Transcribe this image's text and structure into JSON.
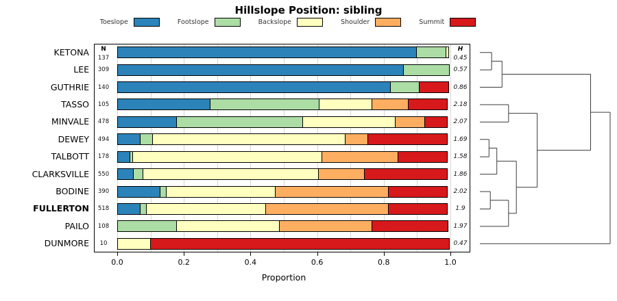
{
  "chart_data": {
    "type": "bar",
    "stacked": true,
    "orientation": "horizontal",
    "title": "Hillslope Position: sibling",
    "xlabel": "Proportion",
    "n_label": "N",
    "h_label": "H",
    "xlim": [
      0,
      1
    ],
    "x_ticks": [
      "0.0",
      "0.2",
      "0.4",
      "0.6",
      "0.8",
      "1.0"
    ],
    "grid_step": 0.1,
    "legend_position": "top",
    "legend": [
      {
        "label": "Toeslope",
        "color": "#2B83BA"
      },
      {
        "label": "Footslope",
        "color": "#ABDDA4"
      },
      {
        "label": "Backslope",
        "color": "#FFFFBF"
      },
      {
        "label": "Shoulder",
        "color": "#FDAE61"
      },
      {
        "label": "Summit",
        "color": "#D7191C"
      }
    ],
    "rows": [
      {
        "name": "KETONA",
        "n": 137,
        "h": "0.45",
        "bold": false,
        "values": [
          0.9,
          0.09,
          0.01,
          0.0,
          0.0
        ]
      },
      {
        "name": "LEE",
        "n": 309,
        "h": "0.57",
        "bold": false,
        "values": [
          0.86,
          0.14,
          0.0,
          0.0,
          0.0
        ]
      },
      {
        "name": "GUTHRIE",
        "n": 140,
        "h": "0.86",
        "bold": false,
        "values": [
          0.82,
          0.09,
          0.0,
          0.0,
          0.09
        ]
      },
      {
        "name": "TASSO",
        "n": 105,
        "h": "2.18",
        "bold": false,
        "values": [
          0.28,
          0.33,
          0.16,
          0.11,
          0.12
        ]
      },
      {
        "name": "MINVALE",
        "n": 478,
        "h": "2.07",
        "bold": false,
        "values": [
          0.18,
          0.38,
          0.28,
          0.09,
          0.07
        ]
      },
      {
        "name": "DEWEY",
        "n": 494,
        "h": "1.69",
        "bold": false,
        "values": [
          0.07,
          0.04,
          0.58,
          0.07,
          0.24
        ]
      },
      {
        "name": "TALBOTT",
        "n": 178,
        "h": "1.58",
        "bold": false,
        "values": [
          0.04,
          0.01,
          0.57,
          0.23,
          0.15
        ]
      },
      {
        "name": "CLARKSVILLE",
        "n": 550,
        "h": "1.86",
        "bold": false,
        "values": [
          0.05,
          0.03,
          0.53,
          0.14,
          0.25
        ]
      },
      {
        "name": "BODINE",
        "n": 390,
        "h": "2.02",
        "bold": false,
        "values": [
          0.13,
          0.02,
          0.33,
          0.34,
          0.18
        ]
      },
      {
        "name": "FULLERTON",
        "n": 518,
        "h": "1.9",
        "bold": true,
        "values": [
          0.07,
          0.02,
          0.36,
          0.37,
          0.18
        ]
      },
      {
        "name": "PAILO",
        "n": 108,
        "h": "1.97",
        "bold": false,
        "values": [
          0.0,
          0.18,
          0.31,
          0.28,
          0.23
        ]
      },
      {
        "name": "DUNMORE",
        "n": 10,
        "h": "0.47",
        "bold": false,
        "values": [
          0.0,
          0.0,
          0.1,
          0.0,
          0.9
        ]
      }
    ],
    "dendrogram": {
      "tree": {
        "h": 1.0,
        "children": [
          {
            "h": 0.85,
            "children": [
              {
                "h": 0.17,
                "children": [
                  {
                    "h": 0.09,
                    "children": [
                      {
                        "leaf": 0
                      },
                      {
                        "leaf": 1
                      }
                    ]
                  },
                  {
                    "leaf": 2
                  }
                ]
              },
              {
                "h": 0.44,
                "children": [
                  {
                    "h": 0.22,
                    "children": [
                      {
                        "leaf": 3
                      },
                      {
                        "leaf": 4
                      }
                    ]
                  },
                  {
                    "h": 0.28,
                    "children": [
                      {
                        "h": 0.13,
                        "children": [
                          {
                            "h": 0.07,
                            "children": [
                              {
                                "leaf": 5
                              },
                              {
                                "leaf": 6
                              }
                            ]
                          },
                          {
                            "leaf": 7
                          }
                        ]
                      },
                      {
                        "h": 0.22,
                        "children": [
                          {
                            "h": 0.08,
                            "children": [
                              {
                                "leaf": 8
                              },
                              {
                                "leaf": 9
                              }
                            ]
                          },
                          {
                            "leaf": 10
                          }
                        ]
                      }
                    ]
                  }
                ]
              }
            ]
          },
          {
            "leaf": 11
          }
        ]
      }
    }
  }
}
